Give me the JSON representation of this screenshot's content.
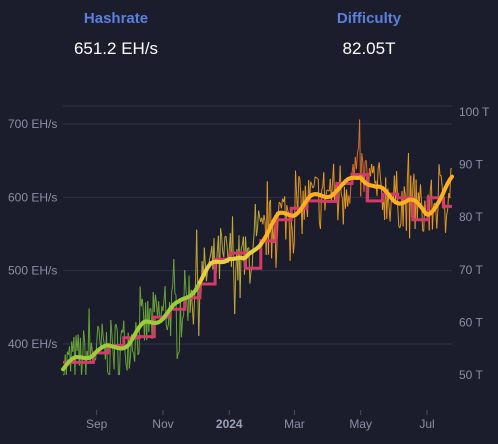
{
  "stats": {
    "hashrate": {
      "label": "Hashrate",
      "value": "651.2 EH/s"
    },
    "difficulty": {
      "label": "Difficulty",
      "value": "82.05T"
    }
  },
  "colors": {
    "background": "#1b1d2c",
    "stat_label": "#5b7fe0",
    "grid": "#2e3245",
    "difficulty_line": "#d63a6b",
    "hashrate_low": "#6fae3a",
    "hashrate_high": "#f0a020",
    "hashrate_peak": "#e8762a"
  },
  "chart_data": {
    "type": "line",
    "left_axis": {
      "unit": "EH/s",
      "ticks": [
        "700 EH/s",
        "600 EH/s",
        "500 EH/s",
        "400 EH/s"
      ],
      "tick_values": [
        700,
        600,
        500,
        400
      ],
      "ylim": [
        355,
        725
      ]
    },
    "right_axis": {
      "unit": "T",
      "ticks": [
        "100 T",
        "90 T",
        "80 T",
        "70 T",
        "60 T",
        "50 T"
      ],
      "tick_values": [
        100,
        90,
        80,
        70,
        60,
        50
      ],
      "ylim": [
        47,
        102.5
      ]
    },
    "x_ticks": [
      {
        "label": "Sep",
        "date": "2023-09-01"
      },
      {
        "label": "Nov",
        "date": "2023-11-01"
      },
      {
        "label": "2024",
        "date": "2024-01-01",
        "bold": true
      },
      {
        "label": "Mar",
        "date": "2024-03-01"
      },
      {
        "label": "May",
        "date": "2024-05-01"
      },
      {
        "label": "Jul",
        "date": "2024-07-01"
      }
    ],
    "x_range": [
      "2023-08-01",
      "2024-07-24"
    ],
    "series": [
      {
        "kind": "daily_hashrate",
        "axis": "left",
        "points": [
          [
            "2023-08-01",
            365
          ],
          [
            "2023-08-15",
            380
          ],
          [
            "2023-09-01",
            392
          ],
          [
            "2023-09-15",
            393
          ],
          [
            "2023-10-01",
            405
          ],
          [
            "2023-10-15",
            425
          ],
          [
            "2023-11-01",
            440
          ],
          [
            "2023-11-15",
            450
          ],
          [
            "2023-12-01",
            480
          ],
          [
            "2023-12-15",
            505
          ],
          [
            "2024-01-01",
            520
          ],
          [
            "2024-01-15",
            508
          ],
          [
            "2024-02-01",
            545
          ],
          [
            "2024-02-15",
            575
          ],
          [
            "2024-03-01",
            580
          ],
          [
            "2024-03-15",
            595
          ],
          [
            "2024-04-01",
            608
          ],
          [
            "2024-04-15",
            615
          ],
          [
            "2024-05-01",
            633
          ],
          [
            "2024-05-15",
            612
          ],
          [
            "2024-06-01",
            598
          ],
          [
            "2024-06-15",
            592
          ],
          [
            "2024-07-01",
            578
          ],
          [
            "2024-07-15",
            600
          ],
          [
            "2024-07-24",
            625
          ]
        ]
      },
      {
        "kind": "moving_average",
        "axis": "left",
        "points": [
          [
            "2023-08-01",
            368
          ],
          [
            "2023-08-15",
            378
          ],
          [
            "2023-09-01",
            393
          ],
          [
            "2023-09-15",
            392
          ],
          [
            "2023-10-01",
            404
          ],
          [
            "2023-10-15",
            425
          ],
          [
            "2023-11-01",
            439
          ],
          [
            "2023-11-15",
            452
          ],
          [
            "2023-12-01",
            479
          ],
          [
            "2023-12-15",
            504
          ],
          [
            "2024-01-01",
            522
          ],
          [
            "2024-01-15",
            510
          ],
          [
            "2024-02-01",
            546
          ],
          [
            "2024-02-15",
            572
          ],
          [
            "2024-03-01",
            581
          ],
          [
            "2024-03-15",
            596
          ],
          [
            "2024-04-01",
            606
          ],
          [
            "2024-04-15",
            614
          ],
          [
            "2024-05-01",
            632
          ],
          [
            "2024-05-15",
            611
          ],
          [
            "2024-06-01",
            599
          ],
          [
            "2024-06-15",
            594
          ],
          [
            "2024-07-01",
            579
          ],
          [
            "2024-07-15",
            601
          ],
          [
            "2024-07-24",
            623
          ]
        ]
      },
      {
        "kind": "difficulty_steps",
        "axis": "right",
        "points": [
          [
            "2023-08-01",
            52.4
          ],
          [
            "2023-08-15",
            52.4
          ],
          [
            "2023-08-29",
            54.2
          ],
          [
            "2023-09-12",
            55.6
          ],
          [
            "2023-09-26",
            57.1
          ],
          [
            "2023-10-10",
            57.3
          ],
          [
            "2023-10-24",
            61.0
          ],
          [
            "2023-11-07",
            62.5
          ],
          [
            "2023-11-21",
            64.7
          ],
          [
            "2023-12-05",
            67.3
          ],
          [
            "2023-12-19",
            72.0
          ],
          [
            "2024-01-02",
            73.2
          ],
          [
            "2024-01-16",
            70.3
          ],
          [
            "2024-01-30",
            75.5
          ],
          [
            "2024-02-13",
            79.5
          ],
          [
            "2024-02-27",
            81.7
          ],
          [
            "2024-03-12",
            83.1
          ],
          [
            "2024-03-26",
            83.0
          ],
          [
            "2024-04-09",
            86.4
          ],
          [
            "2024-04-23",
            88.1
          ],
          [
            "2024-05-07",
            83.1
          ],
          [
            "2024-05-21",
            84.4
          ],
          [
            "2024-06-04",
            83.7
          ],
          [
            "2024-06-18",
            79.5
          ],
          [
            "2024-07-02",
            83.7
          ],
          [
            "2024-07-16",
            82.05
          ]
        ]
      }
    ],
    "grid": true
  }
}
